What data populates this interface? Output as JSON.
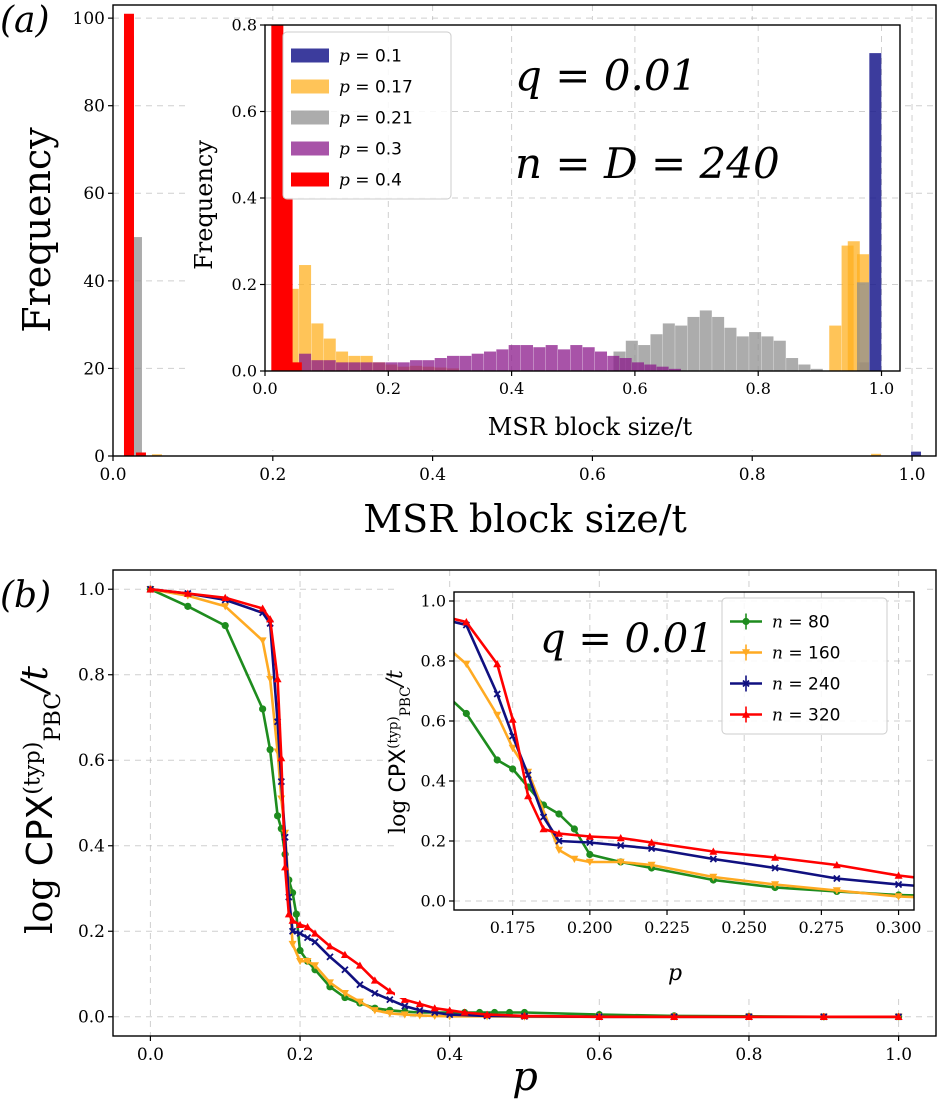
{
  "chart_data": [
    {
      "id": "a-main",
      "type": "bar",
      "panel_label": "(a)",
      "xlabel": "MSR block size/t",
      "ylabel": "Frequency",
      "xlim": [
        0.0,
        1.03
      ],
      "ylim": [
        0,
        103
      ],
      "xticks": [
        0.0,
        0.2,
        0.4,
        0.6,
        0.8,
        1.0
      ],
      "xtick_labels": [
        "0.0",
        "0.2",
        "0.4",
        "0.6",
        "0.8",
        "1.0"
      ],
      "yticks": [
        0,
        20,
        40,
        60,
        80,
        100
      ],
      "ytick_labels": [
        "0",
        "20",
        "40",
        "60",
        "80",
        "100"
      ],
      "grid": true,
      "bin_width": 0.0125,
      "series": [
        {
          "name": "p = 0.1",
          "color": "#1a1a8c",
          "bins": [
            [
              1.005,
              1.0
            ]
          ]
        },
        {
          "name": "p = 0.17",
          "color": "#ffb020",
          "bins": [
            [
              0.055,
              0.4
            ],
            [
              0.955,
              0.5
            ]
          ]
        },
        {
          "name": "p = 0.21",
          "color": "#909090",
          "bins": [
            [
              0.03,
              50
            ]
          ]
        },
        {
          "name": "p = 0.3",
          "color": "#8b1a8b",
          "bins": [
            [
              0.02,
              96
            ]
          ]
        },
        {
          "name": "p = 0.4",
          "color": "#ff0000",
          "bins": [
            [
              0.02,
              101
            ],
            [
              0.035,
              0.8
            ]
          ]
        }
      ]
    },
    {
      "id": "a-inset",
      "type": "bar",
      "xlabel": "MSR block size/t",
      "ylabel": "Frequency",
      "xlim": [
        0.0,
        1.03
      ],
      "ylim": [
        0,
        0.8
      ],
      "xticks": [
        0.0,
        0.2,
        0.4,
        0.6,
        0.8,
        1.0
      ],
      "xtick_labels": [
        "0.0",
        "0.2",
        "0.4",
        "0.6",
        "0.8",
        "1.0"
      ],
      "yticks": [
        0.0,
        0.2,
        0.4,
        0.6,
        0.8
      ],
      "ytick_labels": [
        "0.0",
        "0.2",
        "0.4",
        "0.6",
        "0.8"
      ],
      "grid": true,
      "bin_width": 0.0195,
      "annotation_lines": [
        "q = 0.01",
        "n = D = 240"
      ],
      "legend_position": "top-left",
      "series": [
        {
          "name": "p = 0.1",
          "label_var": "p",
          "label_val": "0.1",
          "color": "#1a1a8c",
          "bins": [
            [
              0.99,
              0.735
            ],
            [
              0.97,
              0.02
            ]
          ]
        },
        {
          "name": "p = 0.17",
          "label_var": "p",
          "label_val": "0.17",
          "color": "#ffb020",
          "bins": [
            [
              0.045,
              0.19
            ],
            [
              0.065,
              0.245
            ],
            [
              0.085,
              0.11
            ],
            [
              0.105,
              0.075
            ],
            [
              0.125,
              0.045
            ],
            [
              0.145,
              0.035
            ],
            [
              0.165,
              0.035
            ],
            [
              0.185,
              0.02
            ],
            [
              0.205,
              0.015
            ],
            [
              0.225,
              0.01
            ],
            [
              0.245,
              0.012
            ],
            [
              0.265,
              0.01
            ],
            [
              0.285,
              0.008
            ],
            [
              0.305,
              0.006
            ],
            [
              0.925,
              0.105
            ],
            [
              0.945,
              0.29
            ],
            [
              0.955,
              0.3
            ],
            [
              0.97,
              0.27
            ]
          ]
        },
        {
          "name": "p = 0.21",
          "label_var": "p",
          "label_val": "0.21",
          "color": "#909090",
          "bins": [
            [
              0.575,
              0.045
            ],
            [
              0.595,
              0.07
            ],
            [
              0.615,
              0.06
            ],
            [
              0.635,
              0.085
            ],
            [
              0.655,
              0.11
            ],
            [
              0.675,
              0.105
            ],
            [
              0.695,
              0.125
            ],
            [
              0.715,
              0.14
            ],
            [
              0.735,
              0.125
            ],
            [
              0.755,
              0.1
            ],
            [
              0.775,
              0.08
            ],
            [
              0.795,
              0.09
            ],
            [
              0.815,
              0.08
            ],
            [
              0.835,
              0.07
            ],
            [
              0.855,
              0.03
            ],
            [
              0.875,
              0.015
            ],
            [
              0.895,
              0.005
            ],
            [
              0.97,
              0.205
            ]
          ]
        },
        {
          "name": "p = 0.3",
          "label_var": "p",
          "label_val": "0.3",
          "color": "#8b1a8b",
          "bins": [
            [
              0.065,
              0.04
            ],
            [
              0.085,
              0.025
            ],
            [
              0.105,
              0.025
            ],
            [
              0.125,
              0.02
            ],
            [
              0.145,
              0.02
            ],
            [
              0.165,
              0.02
            ],
            [
              0.185,
              0.02
            ],
            [
              0.205,
              0.02
            ],
            [
              0.225,
              0.02
            ],
            [
              0.245,
              0.025
            ],
            [
              0.265,
              0.025
            ],
            [
              0.285,
              0.03
            ],
            [
              0.305,
              0.035
            ],
            [
              0.325,
              0.035
            ],
            [
              0.345,
              0.04
            ],
            [
              0.365,
              0.045
            ],
            [
              0.385,
              0.05
            ],
            [
              0.405,
              0.06
            ],
            [
              0.425,
              0.06
            ],
            [
              0.445,
              0.055
            ],
            [
              0.465,
              0.06
            ],
            [
              0.485,
              0.05
            ],
            [
              0.505,
              0.06
            ],
            [
              0.525,
              0.055
            ],
            [
              0.545,
              0.045
            ],
            [
              0.565,
              0.035
            ],
            [
              0.585,
              0.03
            ],
            [
              0.605,
              0.02
            ],
            [
              0.625,
              0.015
            ],
            [
              0.645,
              0.01
            ],
            [
              0.665,
              0.005
            ]
          ]
        },
        {
          "name": "p = 0.4",
          "label_var": "p",
          "label_val": "0.4",
          "color": "#ff0000",
          "bins": [
            [
              0.02,
              0.8
            ],
            [
              0.035,
              0.4
            ],
            [
              0.05,
              0.02
            ]
          ]
        }
      ]
    },
    {
      "id": "b-main",
      "type": "line",
      "panel_label": "(b)",
      "xlabel": "p",
      "ylabel": "log CPX(typ)PBC/t",
      "ylabel_parts": {
        "prefix": "log",
        "main": "CPX",
        "sup": "(typ)",
        "sub": "PBC",
        "suffix": "/t"
      },
      "xlim": [
        -0.05,
        1.05
      ],
      "ylim": [
        -0.045,
        1.045
      ],
      "xticks": [
        0.0,
        0.2,
        0.4,
        0.6,
        0.8,
        1.0
      ],
      "xtick_labels": [
        "0.0",
        "0.2",
        "0.4",
        "0.6",
        "0.8",
        "1.0"
      ],
      "yticks": [
        0.0,
        0.2,
        0.4,
        0.6,
        0.8,
        1.0
      ],
      "ytick_labels": [
        "0.0",
        "0.2",
        "0.4",
        "0.6",
        "0.8",
        "1.0"
      ],
      "grid": true,
      "series": [
        {
          "name": "n = 80",
          "color": "#1e8c1e",
          "marker": "circle",
          "x": [
            0.0,
            0.05,
            0.1,
            0.15,
            0.16,
            0.17,
            0.175,
            0.18,
            0.185,
            0.19,
            0.195,
            0.2,
            0.21,
            0.22,
            0.24,
            0.26,
            0.28,
            0.3,
            0.32,
            0.34,
            0.36,
            0.38,
            0.4,
            0.42,
            0.44,
            0.46,
            0.48,
            0.5,
            0.6,
            0.7,
            0.8,
            0.9,
            1.0
          ],
          "y": [
            1.0,
            0.96,
            0.915,
            0.72,
            0.625,
            0.47,
            0.44,
            0.38,
            0.32,
            0.29,
            0.24,
            0.155,
            0.13,
            0.11,
            0.07,
            0.045,
            0.032,
            0.02,
            0.015,
            0.012,
            0.01,
            0.01,
            0.01,
            0.01,
            0.01,
            0.01,
            0.01,
            0.01,
            0.005,
            0.002,
            0.001,
            0.0,
            0.0
          ]
        },
        {
          "name": "n = 160",
          "color": "#ffaa22",
          "marker": "triangle-down",
          "x": [
            0.0,
            0.05,
            0.1,
            0.15,
            0.16,
            0.17,
            0.175,
            0.18,
            0.19,
            0.2,
            0.21,
            0.22,
            0.24,
            0.26,
            0.28,
            0.3,
            0.32,
            0.34,
            0.36,
            0.38,
            0.4,
            0.45,
            0.5,
            0.6,
            0.7,
            0.8,
            0.9,
            1.0
          ],
          "y": [
            1.0,
            0.985,
            0.96,
            0.88,
            0.79,
            0.62,
            0.51,
            0.43,
            0.17,
            0.13,
            0.13,
            0.12,
            0.08,
            0.055,
            0.035,
            0.015,
            0.008,
            0.005,
            0.003,
            0.002,
            0.001,
            0.001,
            0.0,
            0.0,
            0.0,
            0.0,
            0.0,
            0.0
          ]
        },
        {
          "name": "n = 240",
          "color": "#101080",
          "marker": "x",
          "x": [
            0.0,
            0.05,
            0.1,
            0.15,
            0.16,
            0.17,
            0.175,
            0.18,
            0.185,
            0.19,
            0.2,
            0.21,
            0.22,
            0.24,
            0.26,
            0.28,
            0.3,
            0.32,
            0.34,
            0.36,
            0.38,
            0.4,
            0.45,
            0.5,
            0.6,
            0.7,
            0.8,
            0.9,
            1.0
          ],
          "y": [
            1.0,
            0.99,
            0.975,
            0.945,
            0.92,
            0.69,
            0.55,
            0.42,
            0.28,
            0.2,
            0.195,
            0.185,
            0.175,
            0.14,
            0.11,
            0.075,
            0.055,
            0.04,
            0.025,
            0.015,
            0.01,
            0.005,
            0.002,
            0.001,
            0.0,
            0.0,
            0.0,
            0.0,
            0.0
          ]
        },
        {
          "name": "n = 320",
          "color": "#ff0000",
          "marker": "triangle-up",
          "x": [
            0.0,
            0.05,
            0.1,
            0.15,
            0.16,
            0.17,
            0.175,
            0.18,
            0.185,
            0.19,
            0.2,
            0.21,
            0.22,
            0.24,
            0.26,
            0.28,
            0.3,
            0.32,
            0.34,
            0.36,
            0.38,
            0.4,
            0.42,
            0.45,
            0.5,
            0.6,
            0.7,
            0.8,
            0.9,
            1.0
          ],
          "y": [
            1.0,
            0.99,
            0.98,
            0.955,
            0.93,
            0.79,
            0.605,
            0.35,
            0.24,
            0.225,
            0.215,
            0.21,
            0.195,
            0.165,
            0.145,
            0.12,
            0.085,
            0.06,
            0.04,
            0.03,
            0.02,
            0.015,
            0.01,
            0.005,
            0.002,
            0.0,
            0.0,
            0.0,
            0.0,
            0.0
          ]
        }
      ]
    },
    {
      "id": "b-inset",
      "type": "line",
      "xlabel": "p",
      "ylabel": "log CPX(typ)PBC/t",
      "ylabel_parts": {
        "prefix": "log",
        "main": "CPX",
        "sup": "(typ)",
        "sub": "PBC",
        "suffix": "/t"
      },
      "xlim": [
        0.156,
        0.305
      ],
      "ylim": [
        -0.03,
        1.03
      ],
      "xticks": [
        0.175,
        0.2,
        0.225,
        0.25,
        0.275,
        0.3
      ],
      "xtick_labels": [
        "0.175",
        "0.200",
        "0.225",
        "0.250",
        "0.275",
        "0.300"
      ],
      "yticks": [
        0.0,
        0.2,
        0.4,
        0.6,
        0.8,
        1.0
      ],
      "ytick_labels": [
        "0.0",
        "0.2",
        "0.4",
        "0.6",
        "0.8",
        "1.0"
      ],
      "grid": true,
      "annotation_lines": [
        "q = 0.01"
      ],
      "legend_position": "top-right",
      "series": [
        {
          "name": "n = 80",
          "label_var": "n",
          "label_val": "80",
          "color": "#1e8c1e",
          "marker": "circle",
          "x": [
            0.15,
            0.16,
            0.17,
            0.175,
            0.18,
            0.185,
            0.19,
            0.195,
            0.2,
            0.21,
            0.22,
            0.24,
            0.26,
            0.28,
            0.3,
            0.32
          ],
          "y": [
            0.72,
            0.625,
            0.47,
            0.44,
            0.38,
            0.32,
            0.29,
            0.24,
            0.155,
            0.13,
            0.11,
            0.07,
            0.045,
            0.032,
            0.02,
            0.015
          ]
        },
        {
          "name": "n = 160",
          "label_var": "n",
          "label_val": "160",
          "color": "#ffaa22",
          "marker": "triangle-down",
          "x": [
            0.15,
            0.16,
            0.17,
            0.175,
            0.18,
            0.19,
            0.195,
            0.2,
            0.21,
            0.22,
            0.24,
            0.26,
            0.28,
            0.3,
            0.32
          ],
          "y": [
            0.88,
            0.79,
            0.62,
            0.51,
            0.43,
            0.17,
            0.14,
            0.13,
            0.13,
            0.12,
            0.08,
            0.055,
            0.035,
            0.015,
            0.008
          ]
        },
        {
          "name": "n = 240",
          "label_var": "n",
          "label_val": "240",
          "color": "#101080",
          "marker": "x",
          "x": [
            0.15,
            0.16,
            0.17,
            0.175,
            0.18,
            0.185,
            0.19,
            0.2,
            0.21,
            0.22,
            0.24,
            0.26,
            0.28,
            0.3,
            0.32
          ],
          "y": [
            0.945,
            0.92,
            0.69,
            0.55,
            0.42,
            0.28,
            0.2,
            0.195,
            0.185,
            0.175,
            0.14,
            0.11,
            0.075,
            0.055,
            0.04
          ]
        },
        {
          "name": "n = 320",
          "label_var": "n",
          "label_val": "320",
          "color": "#ff0000",
          "marker": "triangle-up",
          "x": [
            0.15,
            0.16,
            0.17,
            0.175,
            0.18,
            0.185,
            0.19,
            0.2,
            0.21,
            0.22,
            0.24,
            0.26,
            0.28,
            0.3,
            0.32
          ],
          "y": [
            0.955,
            0.93,
            0.79,
            0.605,
            0.35,
            0.24,
            0.225,
            0.215,
            0.21,
            0.195,
            0.165,
            0.145,
            0.12,
            0.085,
            0.06
          ]
        }
      ]
    }
  ]
}
